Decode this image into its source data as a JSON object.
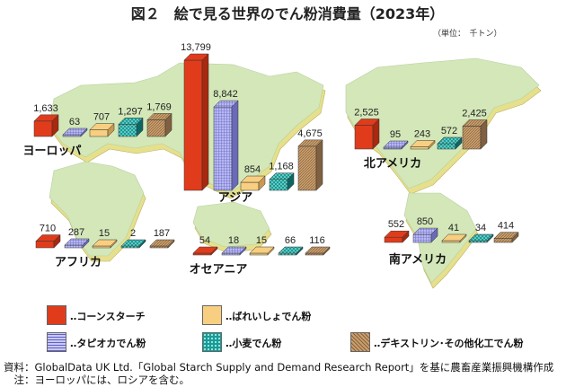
{
  "title": "図２　絵で見る世界のでん粉消費量（2023年）",
  "unit": "（単位：　千トン）",
  "colors": {
    "corn": "#e03c1c",
    "potato": "#f8cf80",
    "tapioca": "#9a9ae8",
    "wheat": "#1a9a98",
    "dextrin": "#c09060",
    "land": "#d3e7b8",
    "land_edge": "#e6e08c"
  },
  "legend": [
    {
      "key": "corn",
      "label": "‥コーンスターチ"
    },
    {
      "key": "potato",
      "label": "‥ばれいしょでん粉"
    },
    {
      "key": "tapioca",
      "label": "‥タピオカでん粉"
    },
    {
      "key": "wheat",
      "label": "‥小麦でん粉"
    },
    {
      "key": "dextrin",
      "label": "‥デキストリン･その他化工でん粉"
    }
  ],
  "chart_data": {
    "type": "bar",
    "title": "図２　絵で見る世界のでん粉消費量（2023年）",
    "unit": "千トン",
    "series_order": [
      "コーンスターチ",
      "タピオカでん粉",
      "ばれいしょでん粉",
      "小麦でん粉",
      "デキストリン･その他化工でん粉"
    ],
    "regions": [
      {
        "name": "ヨーロッパ",
        "values": [
          1633,
          63,
          707,
          1297,
          1769
        ],
        "labels": [
          "1,633",
          "63",
          "707",
          "1,297",
          "1,769"
        ]
      },
      {
        "name": "アジア",
        "values": [
          13799,
          8842,
          854,
          1168,
          4675
        ],
        "labels": [
          "13,799",
          "8,842",
          "854",
          "1,168",
          "4,675"
        ]
      },
      {
        "name": "北アメリカ",
        "values": [
          2525,
          95,
          243,
          572,
          2425
        ],
        "labels": [
          "2,525",
          "95",
          "243",
          "572",
          "2,425"
        ]
      },
      {
        "name": "アフリカ",
        "values": [
          710,
          287,
          15,
          2,
          187
        ],
        "labels": [
          "710",
          "287",
          "15",
          "2",
          "187"
        ]
      },
      {
        "name": "オセアニア",
        "values": [
          54,
          18,
          15,
          66,
          116
        ],
        "labels": [
          "54",
          "18",
          "15",
          "66",
          "116"
        ]
      },
      {
        "name": "南アメリカ",
        "values": [
          552,
          850,
          41,
          34,
          414
        ],
        "labels": [
          "552",
          "850",
          "41",
          "34",
          "414"
        ]
      }
    ]
  },
  "notes": {
    "source": "資料：GlobalData UK Ltd.「Global Starch Supply and Demand Research Report」を基に農畜産業振興機構作成",
    "note": "　注：ヨーロッパには、ロシアを含む。"
  }
}
